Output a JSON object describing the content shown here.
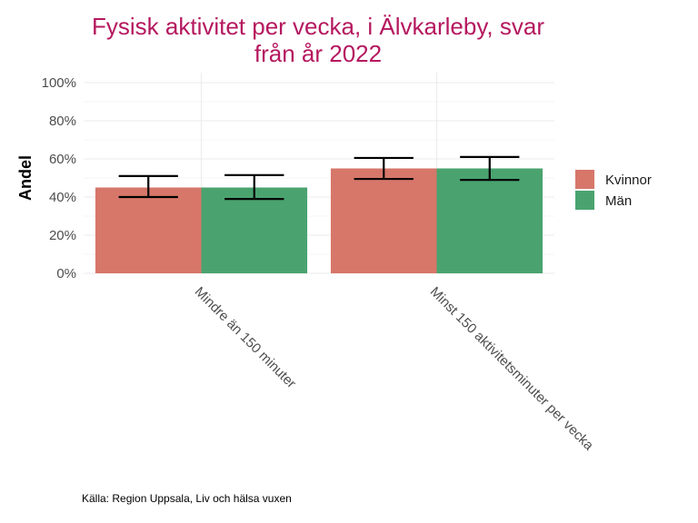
{
  "chart_data": {
    "type": "bar",
    "title_lines": [
      "Fysisk aktivitet per vecka, i Älvkarleby, svar",
      "från år 2022"
    ],
    "ylabel": "Andel",
    "ylim": [
      0,
      100
    ],
    "y_ticks": [
      "0%",
      "20%",
      "40%",
      "60%",
      "80%",
      "100%"
    ],
    "categories": [
      "Mindre än 150 minuter",
      "Minst 150 aktivitetsminuter per vecka"
    ],
    "series": [
      {
        "name": "Kvinnor",
        "color": "#d6776a",
        "values": [
          45,
          55
        ],
        "ci_low": [
          40,
          49.5
        ],
        "ci_high": [
          51,
          60.5
        ]
      },
      {
        "name": "Män",
        "color": "#4aa36f",
        "values": [
          45,
          55
        ],
        "ci_low": [
          39,
          49
        ],
        "ci_high": [
          51.5,
          61
        ]
      }
    ],
    "grid": true,
    "legend_position": "right",
    "caption": "Källa: Region Uppsala, Liv och hälsa vuxen"
  }
}
